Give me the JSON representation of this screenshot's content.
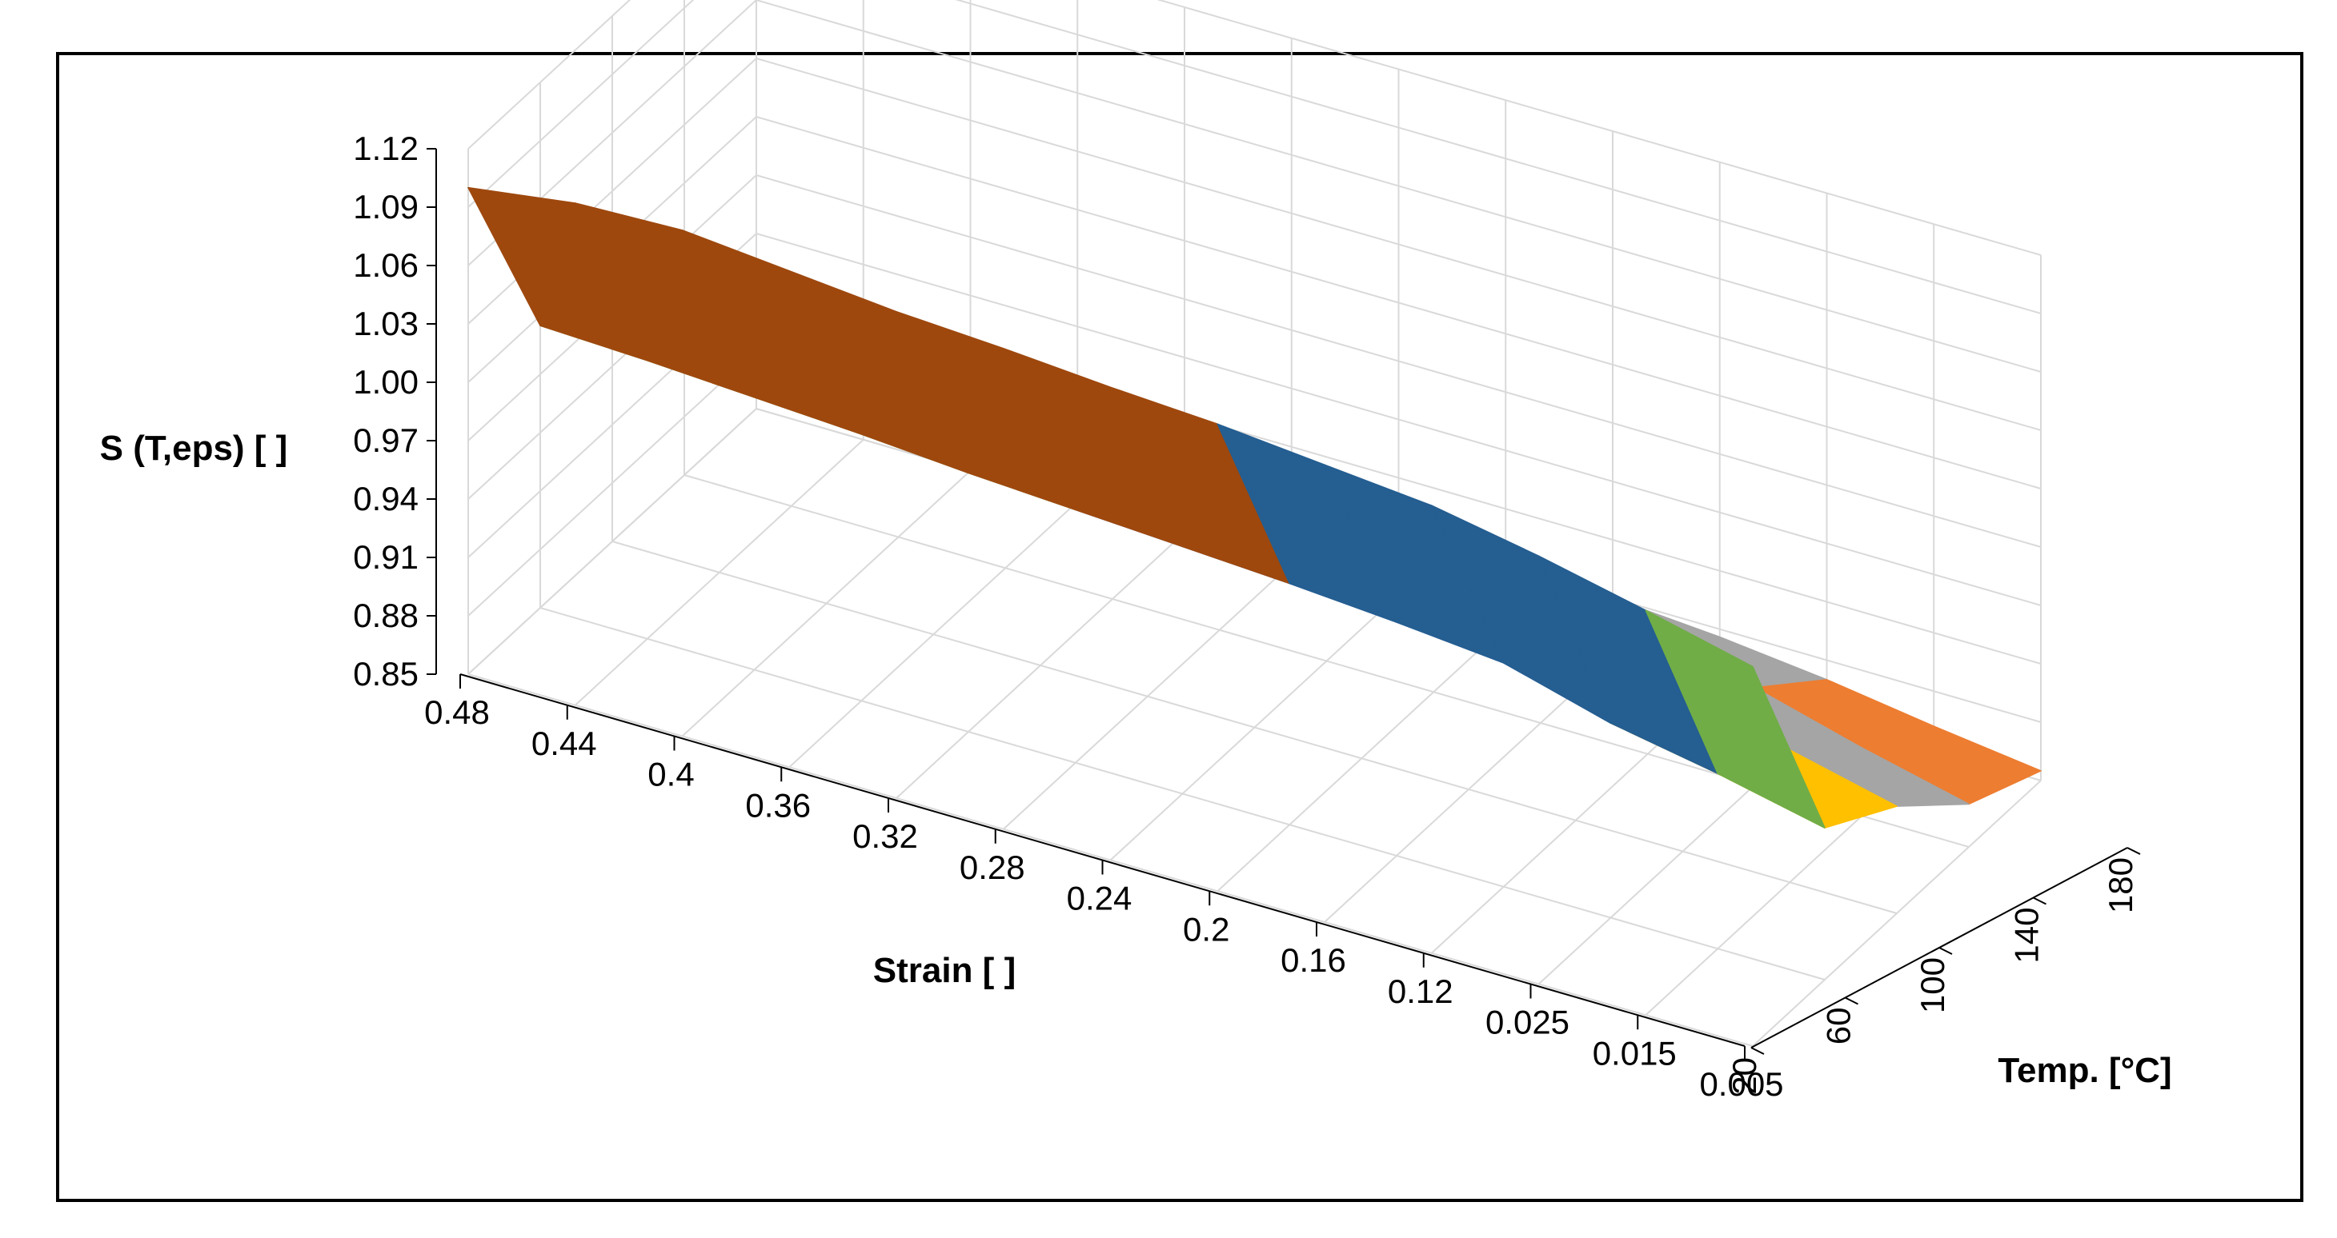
{
  "chart_data": {
    "type": "surface",
    "title": "",
    "zlabel": "S (T,eps) [ ]",
    "xlabel": "Strain [ ]",
    "ylabel": "Temp. [°C]",
    "zlim": [
      0.85,
      1.12
    ],
    "z_ticks": [
      "0.85",
      "0.88",
      "0.91",
      "0.94",
      "0.97",
      "1.00",
      "1.03",
      "1.06",
      "1.09",
      "1.12"
    ],
    "strain_ticks": [
      "0.48",
      "0.44",
      "0.4",
      "0.36",
      "0.32",
      "0.28",
      "0.24",
      "0.2",
      "0.16",
      "0.12",
      "0.025",
      "0.015",
      "0.005"
    ],
    "temp_ticks": [
      "20",
      "60",
      "100",
      "140",
      "180"
    ],
    "grid": true,
    "legend": "none",
    "band_colors": {
      "0.85-0.88": "#ed7d31",
      "0.88-0.91": "#a5a5a5",
      "0.91-0.94": "#ffc000",
      "0.94-0.97": "#4472c4",
      "0.97-1.00": "#70ad47",
      "1.00-1.03": "#255e91",
      "1.03-1.06": "#9e480e",
      "1.06-1.09": "#636363"
    },
    "strain_values": [
      0.48,
      0.44,
      0.4,
      0.36,
      0.32,
      0.28,
      0.24,
      0.2,
      0.16,
      0.12,
      0.025,
      0.015,
      0.005
    ],
    "temp_values": [
      20,
      60,
      100,
      140,
      180
    ],
    "z_values": [
      [
        1.1,
        0.995,
        0.975,
        0.945,
        0.905
      ],
      [
        1.108,
        0.993,
        0.973,
        0.943,
        0.903
      ],
      [
        1.11,
        0.99,
        0.97,
        0.94,
        0.9
      ],
      [
        1.105,
        0.987,
        0.967,
        0.937,
        0.897
      ],
      [
        1.1,
        0.983,
        0.963,
        0.933,
        0.893
      ],
      [
        1.097,
        0.98,
        0.96,
        0.93,
        0.89
      ],
      [
        1.093,
        0.977,
        0.957,
        0.927,
        0.887
      ],
      [
        1.09,
        0.974,
        0.954,
        0.924,
        0.884
      ],
      [
        1.085,
        0.97,
        0.95,
        0.92,
        0.88
      ],
      [
        1.08,
        0.965,
        0.946,
        0.916,
        0.876
      ],
      [
        1.07,
        0.95,
        0.93,
        0.9,
        0.87
      ],
      [
        1.058,
        0.94,
        0.918,
        0.885,
        0.862
      ],
      [
        1.045,
        0.928,
        0.905,
        0.872,
        0.855
      ]
    ]
  }
}
